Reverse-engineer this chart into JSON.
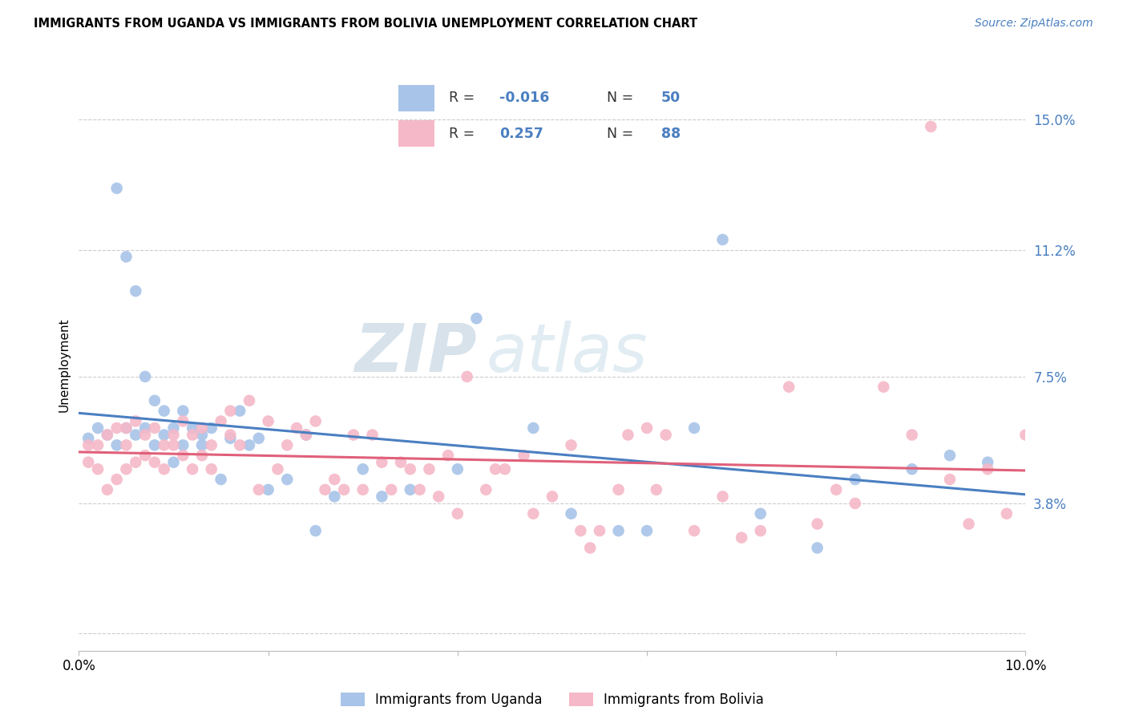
{
  "title": "IMMIGRANTS FROM UGANDA VS IMMIGRANTS FROM BOLIVIA UNEMPLOYMENT CORRELATION CHART",
  "source": "Source: ZipAtlas.com",
  "ylabel": "Unemployment",
  "xlim": [
    0.0,
    0.1
  ],
  "ylim": [
    -0.005,
    0.162
  ],
  "y_ticks": [
    0.0,
    0.038,
    0.075,
    0.112,
    0.15
  ],
  "y_tick_labels": [
    "",
    "3.8%",
    "7.5%",
    "11.2%",
    "15.0%"
  ],
  "x_ticks": [
    0.0,
    0.02,
    0.04,
    0.06,
    0.08,
    0.1
  ],
  "x_tick_labels": [
    "0.0%",
    "",
    "",
    "",
    "",
    "10.0%"
  ],
  "color_uganda": "#a8c4e8",
  "color_bolivia": "#f5b8c8",
  "color_uganda_line": "#4a7fc1",
  "color_bolivia_line": "#e0607a",
  "watermark_zip": "ZIP",
  "watermark_atlas": "atlas",
  "uganda_x": [
    0.001,
    0.002,
    0.003,
    0.004,
    0.004,
    0.005,
    0.005,
    0.006,
    0.006,
    0.007,
    0.007,
    0.008,
    0.008,
    0.009,
    0.009,
    0.01,
    0.01,
    0.011,
    0.011,
    0.012,
    0.013,
    0.013,
    0.014,
    0.015,
    0.016,
    0.017,
    0.018,
    0.019,
    0.02,
    0.022,
    0.024,
    0.025,
    0.027,
    0.03,
    0.032,
    0.035,
    0.04,
    0.042,
    0.048,
    0.052,
    0.057,
    0.06,
    0.065,
    0.068,
    0.072,
    0.078,
    0.082,
    0.088,
    0.092,
    0.096
  ],
  "uganda_y": [
    0.057,
    0.06,
    0.058,
    0.13,
    0.055,
    0.11,
    0.06,
    0.1,
    0.058,
    0.075,
    0.06,
    0.068,
    0.055,
    0.065,
    0.058,
    0.06,
    0.05,
    0.065,
    0.055,
    0.06,
    0.055,
    0.058,
    0.06,
    0.045,
    0.057,
    0.065,
    0.055,
    0.057,
    0.042,
    0.045,
    0.058,
    0.03,
    0.04,
    0.048,
    0.04,
    0.042,
    0.048,
    0.092,
    0.06,
    0.035,
    0.03,
    0.03,
    0.06,
    0.115,
    0.035,
    0.025,
    0.045,
    0.048,
    0.052,
    0.05
  ],
  "bolivia_x": [
    0.001,
    0.001,
    0.002,
    0.002,
    0.003,
    0.003,
    0.004,
    0.004,
    0.005,
    0.005,
    0.005,
    0.006,
    0.006,
    0.007,
    0.007,
    0.008,
    0.008,
    0.009,
    0.009,
    0.01,
    0.01,
    0.011,
    0.011,
    0.012,
    0.012,
    0.013,
    0.013,
    0.014,
    0.014,
    0.015,
    0.016,
    0.016,
    0.017,
    0.018,
    0.019,
    0.02,
    0.021,
    0.022,
    0.023,
    0.024,
    0.025,
    0.026,
    0.027,
    0.028,
    0.029,
    0.03,
    0.031,
    0.032,
    0.033,
    0.034,
    0.035,
    0.036,
    0.037,
    0.038,
    0.039,
    0.04,
    0.041,
    0.043,
    0.044,
    0.045,
    0.047,
    0.05,
    0.052,
    0.053,
    0.055,
    0.057,
    0.06,
    0.062,
    0.065,
    0.068,
    0.07,
    0.072,
    0.075,
    0.078,
    0.08,
    0.082,
    0.085,
    0.088,
    0.09,
    0.092,
    0.094,
    0.096,
    0.098,
    0.1,
    0.048,
    0.054,
    0.058,
    0.061
  ],
  "bolivia_y": [
    0.05,
    0.055,
    0.048,
    0.055,
    0.042,
    0.058,
    0.045,
    0.06,
    0.048,
    0.055,
    0.06,
    0.05,
    0.062,
    0.052,
    0.058,
    0.05,
    0.06,
    0.048,
    0.055,
    0.055,
    0.058,
    0.052,
    0.062,
    0.048,
    0.058,
    0.052,
    0.06,
    0.048,
    0.055,
    0.062,
    0.058,
    0.065,
    0.055,
    0.068,
    0.042,
    0.062,
    0.048,
    0.055,
    0.06,
    0.058,
    0.062,
    0.042,
    0.045,
    0.042,
    0.058,
    0.042,
    0.058,
    0.05,
    0.042,
    0.05,
    0.048,
    0.042,
    0.048,
    0.04,
    0.052,
    0.035,
    0.075,
    0.042,
    0.048,
    0.048,
    0.052,
    0.04,
    0.055,
    0.03,
    0.03,
    0.042,
    0.06,
    0.058,
    0.03,
    0.04,
    0.028,
    0.03,
    0.072,
    0.032,
    0.042,
    0.038,
    0.072,
    0.058,
    0.148,
    0.045,
    0.032,
    0.048,
    0.035,
    0.058,
    0.035,
    0.025,
    0.058,
    0.042
  ]
}
